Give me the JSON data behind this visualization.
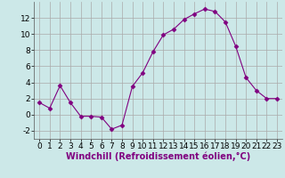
{
  "x": [
    0,
    1,
    2,
    3,
    4,
    5,
    6,
    7,
    8,
    9,
    10,
    11,
    12,
    13,
    14,
    15,
    16,
    17,
    18,
    19,
    20,
    21,
    22,
    23
  ],
  "y": [
    1.5,
    0.8,
    3.6,
    1.5,
    -0.2,
    -0.2,
    -0.3,
    -1.8,
    -1.3,
    3.5,
    5.2,
    7.8,
    9.9,
    10.6,
    11.8,
    12.5,
    13.1,
    12.8,
    11.5,
    8.5,
    4.6,
    3.0,
    2.0,
    2.0
  ],
  "line_color": "#800080",
  "marker": "D",
  "marker_size": 2.5,
  "bg_color": "#cce8e8",
  "grid_color": "#aaaaaa",
  "xlabel": "Windchill (Refroidissement éolien,°C)",
  "xlabel_fontsize": 7,
  "tick_fontsize": 6.5,
  "ylim": [
    -3,
    14
  ],
  "xlim": [
    -0.5,
    23.5
  ],
  "yticks": [
    -2,
    0,
    2,
    4,
    6,
    8,
    10,
    12
  ],
  "xticks": [
    0,
    1,
    2,
    3,
    4,
    5,
    6,
    7,
    8,
    9,
    10,
    11,
    12,
    13,
    14,
    15,
    16,
    17,
    18,
    19,
    20,
    21,
    22,
    23
  ]
}
